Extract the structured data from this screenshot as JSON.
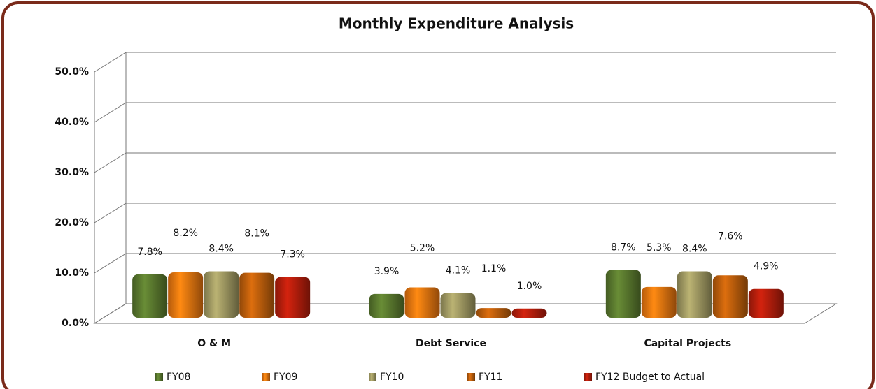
{
  "chart_data": {
    "type": "bar3d",
    "title": "Monthly Expenditure Analysis",
    "categories": [
      "O & M",
      "Debt Service",
      "Capital Projects"
    ],
    "series": [
      {
        "name": "FY08",
        "color": "#5b7b2f",
        "values": [
          7.8,
          3.9,
          8.7
        ],
        "value_labels": [
          "7.8%",
          "3.9%",
          "8.7%"
        ]
      },
      {
        "name": "FY09",
        "color": "#f07810",
        "values": [
          8.2,
          5.2,
          5.3
        ],
        "value_labels": [
          "8.2%",
          "5.2%",
          "5.3%"
        ]
      },
      {
        "name": "FY10",
        "color": "#a39c64",
        "values": [
          8.4,
          4.1,
          8.4
        ],
        "value_labels": [
          "8.4%",
          "4.1%",
          "8.4%"
        ]
      },
      {
        "name": "FY11",
        "color": "#c0600c",
        "values": [
          8.1,
          1.1,
          7.6
        ],
        "value_labels": [
          "8.1%",
          "1.1%",
          "7.6%"
        ]
      },
      {
        "name": "FY12 Budget to Actual",
        "color": "#b81e0c",
        "values": [
          7.3,
          1.0,
          4.9
        ],
        "value_labels": [
          "7.3%",
          "1.0%",
          "4.9%"
        ]
      }
    ],
    "ylim": [
      0,
      50
    ],
    "yticks": [
      {
        "value": 0,
        "label": "0.0%"
      },
      {
        "value": 10,
        "label": "10.0%"
      },
      {
        "value": 20,
        "label": "20.0%"
      },
      {
        "value": 30,
        "label": "30.0%"
      },
      {
        "value": 40,
        "label": "40.0%"
      },
      {
        "value": 50,
        "label": "50.0%"
      }
    ],
    "grid": true
  }
}
